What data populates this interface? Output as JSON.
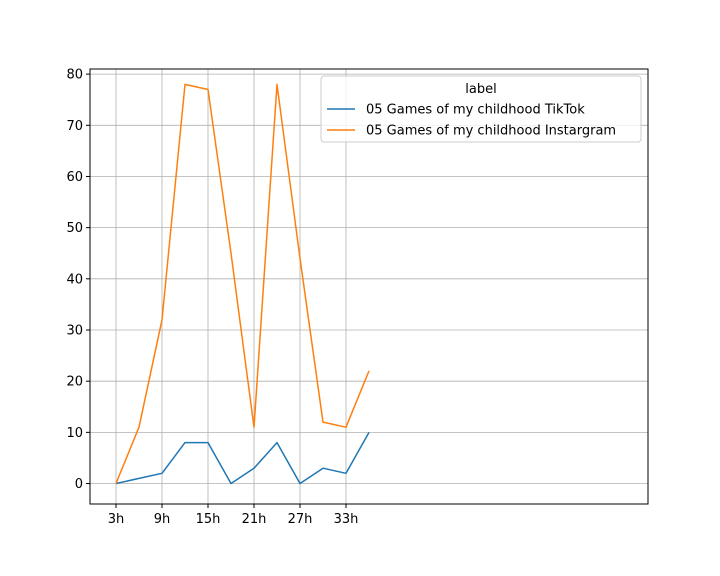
{
  "chart_data": {
    "type": "line",
    "x": [
      "3h",
      "6h",
      "9h",
      "12h",
      "15h",
      "18h",
      "21h",
      "24h",
      "27h",
      "30h",
      "33h",
      "36h"
    ],
    "x_tick_labels": [
      "3h",
      "9h",
      "15h",
      "21h",
      "27h",
      "33h"
    ],
    "y_ticks": [
      0,
      10,
      20,
      30,
      40,
      50,
      60,
      70,
      80
    ],
    "ylim": [
      -4,
      81
    ],
    "grid": true,
    "legend": {
      "title": "label",
      "placement": "top-right"
    },
    "series": [
      {
        "name": "05 Games of my childhood TikTok",
        "color": "#1f77b4",
        "values": [
          0,
          1,
          2,
          8,
          8,
          0,
          3,
          8,
          0,
          3,
          2,
          10
        ]
      },
      {
        "name": "05 Games of my childhood Instargram",
        "color": "#ff7f0e",
        "values": [
          0,
          11,
          32,
          78,
          77,
          45,
          11,
          78,
          44,
          12,
          11,
          22
        ]
      }
    ]
  }
}
